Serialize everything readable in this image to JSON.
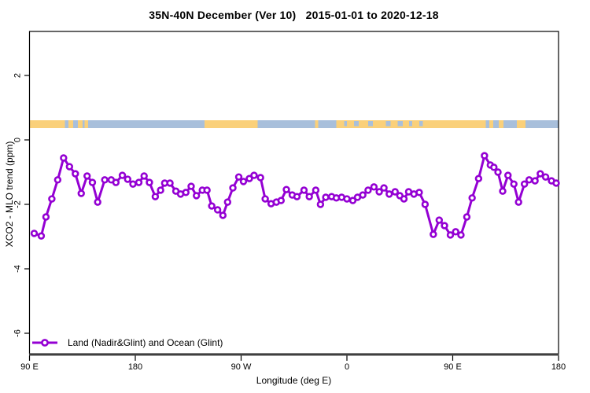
{
  "chart_data": {
    "type": "line",
    "title": "35N-40N December (Ver 10)   2015-01-01 to 2020-12-18",
    "xlabel": "Longitude (deg E)",
    "ylabel": "XCO2 - MLO trend (ppm)",
    "xlim": [
      90,
      540
    ],
    "ylim": [
      -6.63,
      3.37
    ],
    "grid": false,
    "x_ticks": [
      {
        "deg": 90,
        "label": "90 E"
      },
      {
        "deg": 180,
        "label": "180"
      },
      {
        "deg": 270,
        "label": "90 W"
      },
      {
        "deg": 360,
        "label": "0"
      },
      {
        "deg": 450,
        "label": "90 E"
      },
      {
        "deg": 540,
        "label": "180"
      }
    ],
    "y_ticks": [
      {
        "value": 2,
        "label": "2"
      },
      {
        "value": 0,
        "label": "0"
      },
      {
        "value": -2,
        "label": "-2"
      },
      {
        "value": -4,
        "label": "-4"
      },
      {
        "value": -6,
        "label": "-6"
      }
    ],
    "legend": {
      "label": "Land (Nadir&Glint) and Ocean (Glint)",
      "position": "bottom-left"
    },
    "line_color": "#9400D3",
    "marker": "open-circle",
    "series": [
      {
        "name": "Land (Nadir&Glint) and Ocean (Glint)",
        "color": "#9400D3",
        "points": [
          [
            94,
            -2.9
          ],
          [
            100,
            -2.98
          ],
          [
            104,
            -2.39
          ],
          [
            109,
            -1.83
          ],
          [
            114,
            -1.24
          ],
          [
            119,
            -0.56
          ],
          [
            124,
            -0.83
          ],
          [
            129,
            -1.05
          ],
          [
            134,
            -1.66
          ],
          [
            139,
            -1.12
          ],
          [
            143.5,
            -1.32
          ],
          [
            148,
            -1.93
          ],
          [
            154,
            -1.24
          ],
          [
            159.5,
            -1.24
          ],
          [
            163.5,
            -1.32
          ],
          [
            169,
            -1.1
          ],
          [
            173.5,
            -1.22
          ],
          [
            178,
            -1.37
          ],
          [
            183,
            -1.32
          ],
          [
            187.5,
            -1.12
          ],
          [
            192,
            -1.32
          ],
          [
            197,
            -1.76
          ],
          [
            201.5,
            -1.56
          ],
          [
            205,
            -1.34
          ],
          [
            209.5,
            -1.34
          ],
          [
            214.5,
            -1.59
          ],
          [
            218.5,
            -1.68
          ],
          [
            223,
            -1.63
          ],
          [
            227.5,
            -1.44
          ],
          [
            232,
            -1.73
          ],
          [
            237,
            -1.56
          ],
          [
            241,
            -1.56
          ],
          [
            245,
            -2.05
          ],
          [
            250,
            -2.17
          ],
          [
            254.5,
            -2.34
          ],
          [
            258.5,
            -1.93
          ],
          [
            263,
            -1.49
          ],
          [
            268,
            -1.15
          ],
          [
            272,
            -1.29
          ],
          [
            277,
            -1.2
          ],
          [
            281,
            -1.1
          ],
          [
            286.5,
            -1.17
          ],
          [
            290.5,
            -1.83
          ],
          [
            295.5,
            -1.98
          ],
          [
            300,
            -1.93
          ],
          [
            304,
            -1.88
          ],
          [
            308.5,
            -1.54
          ],
          [
            313.5,
            -1.71
          ],
          [
            317.5,
            -1.76
          ],
          [
            323.5,
            -1.56
          ],
          [
            328,
            -1.76
          ],
          [
            333.5,
            -1.56
          ],
          [
            337.5,
            -2.0
          ],
          [
            342,
            -1.78
          ],
          [
            347,
            -1.76
          ],
          [
            351,
            -1.8
          ],
          [
            355.5,
            -1.78
          ],
          [
            360,
            -1.83
          ],
          [
            365,
            -1.88
          ],
          [
            369,
            -1.78
          ],
          [
            373.5,
            -1.71
          ],
          [
            378,
            -1.56
          ],
          [
            383,
            -1.46
          ],
          [
            387.5,
            -1.61
          ],
          [
            391.5,
            -1.49
          ],
          [
            396,
            -1.68
          ],
          [
            401,
            -1.61
          ],
          [
            405,
            -1.73
          ],
          [
            408.5,
            -1.83
          ],
          [
            412.5,
            -1.61
          ],
          [
            417,
            -1.68
          ],
          [
            421.5,
            -1.63
          ],
          [
            426.5,
            -2.0
          ],
          [
            433.5,
            -2.93
          ],
          [
            438.5,
            -2.49
          ],
          [
            443,
            -2.66
          ],
          [
            448,
            -2.95
          ],
          [
            452.5,
            -2.85
          ],
          [
            457,
            -2.95
          ],
          [
            462,
            -2.39
          ],
          [
            466.5,
            -1.8
          ],
          [
            472,
            -1.2
          ],
          [
            477,
            -0.49
          ],
          [
            482,
            -0.78
          ],
          [
            485,
            -0.85
          ],
          [
            488.5,
            -1.0
          ],
          [
            492.5,
            -1.59
          ],
          [
            497,
            -1.1
          ],
          [
            502,
            -1.37
          ],
          [
            506,
            -1.93
          ],
          [
            511,
            -1.37
          ],
          [
            515,
            -1.24
          ],
          [
            520,
            -1.27
          ],
          [
            524.5,
            -1.05
          ],
          [
            529,
            -1.15
          ],
          [
            534,
            -1.27
          ],
          [
            538,
            -1.34
          ]
        ]
      }
    ],
    "land_ocean_strip": {
      "y_top_value": 0.61,
      "y_bottom_value": 0.37,
      "ocean_color": "#A8BFDB",
      "land_color": "#FAD07A",
      "land_segments_deg": [
        [
          90,
          120
        ],
        [
          123,
          127
        ],
        [
          131,
          135
        ],
        [
          137,
          140
        ],
        [
          239,
          284
        ],
        [
          333,
          335.5
        ],
        [
          351,
          478
        ],
        [
          481,
          484.5
        ],
        [
          489,
          493
        ],
        [
          504.5,
          512
        ]
      ],
      "ocean_patches_deg": [
        [
          357.5,
          360
        ],
        [
          366,
          370
        ],
        [
          378,
          382
        ],
        [
          393,
          397
        ],
        [
          403,
          407.5
        ],
        [
          413,
          415.5
        ],
        [
          421.5,
          424.5
        ]
      ]
    }
  }
}
